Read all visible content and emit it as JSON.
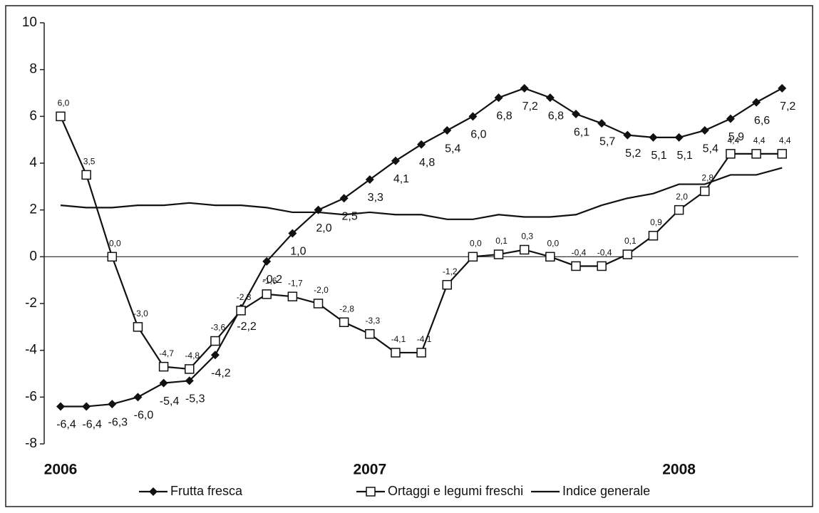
{
  "chart_data": {
    "type": "line",
    "categories": [
      "2006",
      null,
      null,
      null,
      null,
      null,
      null,
      null,
      null,
      null,
      null,
      null,
      "2007",
      null,
      null,
      null,
      null,
      null,
      null,
      null,
      null,
      null,
      null,
      null,
      "2008",
      null,
      null,
      null,
      null
    ],
    "series": [
      {
        "name": "Frutta fresca",
        "color": "#111111",
        "marker": "diamond",
        "values": [
          -6.4,
          -6.4,
          -6.3,
          -6.0,
          -5.4,
          -5.3,
          -4.2,
          -2.2,
          -0.2,
          1.0,
          2.0,
          2.5,
          3.3,
          4.1,
          4.8,
          5.4,
          6.0,
          6.8,
          7.2,
          6.8,
          6.1,
          5.7,
          5.2,
          5.1,
          5.1,
          5.4,
          5.9,
          6.6,
          7.2
        ],
        "value_labels": [
          "-6,4",
          "-6,4",
          "-6,3",
          "-6,0",
          "-5,4",
          "-5,3",
          "-4,2",
          "-2,2",
          "-0,2",
          "1,0",
          "2,0",
          "2,5",
          "3,3",
          "4,1",
          "4,8",
          "5,4",
          "6,0",
          "6,8",
          "7,2",
          "6,8",
          "6,1",
          "5,7",
          "5,2",
          "5,1",
          "5,1",
          "5,4",
          "5,9",
          "6,6",
          "7,2"
        ]
      },
      {
        "name": "Ortaggi e legumi freschi",
        "color": "#111111",
        "marker": "square",
        "values": [
          6.0,
          3.5,
          0.0,
          -3.0,
          -4.7,
          -4.8,
          -3.6,
          -2.3,
          -1.6,
          -1.7,
          -2.0,
          -2.8,
          -3.3,
          -4.1,
          -4.1,
          -1.2,
          0.0,
          0.1,
          0.3,
          0.0,
          -0.4,
          -0.4,
          0.1,
          0.9,
          2.0,
          2.8,
          4.4,
          4.4,
          4.4
        ],
        "value_labels": [
          "6,0",
          "3,5",
          "0,0",
          "-3,0",
          "-4,7",
          "-4,8",
          "-3,6",
          "-2,3",
          "-1,6",
          "-1,7",
          "-2,0",
          "-2,8",
          "-3,3",
          "-4,1",
          "-4,1",
          "-1,2",
          "0,0",
          "0,1",
          "0,3",
          "0,0",
          "-0,4",
          "-0,4",
          "0,1",
          "0,9",
          "2,0",
          "2,8",
          "4,4",
          "4,4",
          "4,4"
        ]
      },
      {
        "name": "Indice generale",
        "color": "#111111",
        "marker": "none",
        "values": [
          2.2,
          2.1,
          2.1,
          2.2,
          2.2,
          2.3,
          2.2,
          2.2,
          2.1,
          1.9,
          1.9,
          1.8,
          1.9,
          1.8,
          1.8,
          1.6,
          1.6,
          1.8,
          1.7,
          1.7,
          1.8,
          2.2,
          2.5,
          2.7,
          3.1,
          3.1,
          3.5,
          3.5,
          3.8
        ]
      }
    ],
    "ylim": [
      -8,
      10
    ],
    "yticks": [
      -8,
      -6,
      -4,
      -2,
      0,
      2,
      4,
      6,
      8,
      10
    ],
    "legend": "bottom"
  }
}
